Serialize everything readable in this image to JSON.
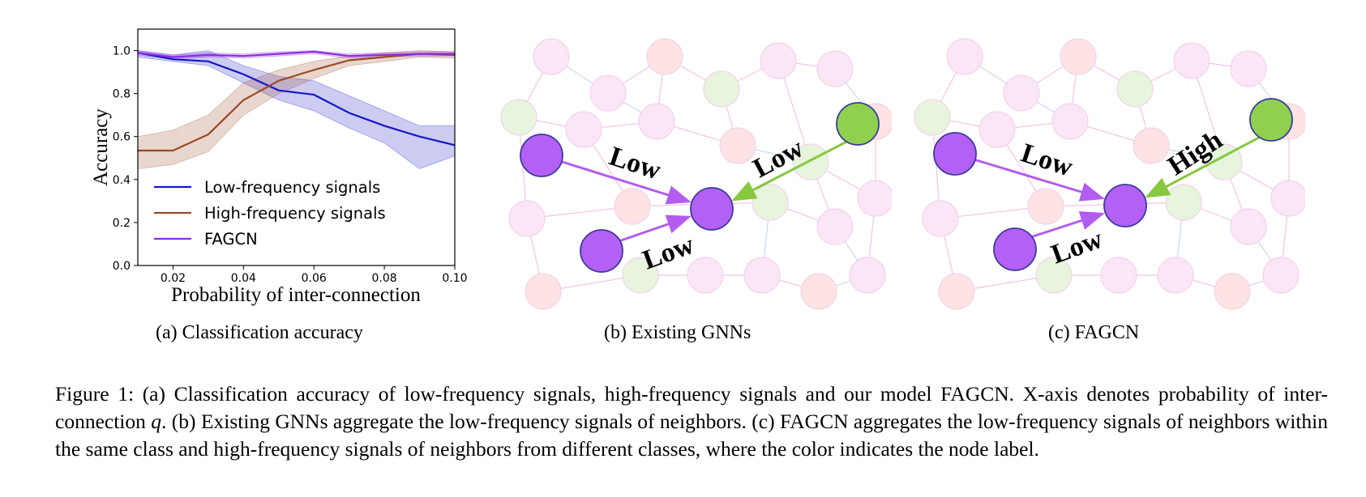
{
  "chart_data": {
    "type": "line",
    "xlabel": "Probability of inter-connection",
    "ylabel": "Accuracy",
    "xlim": [
      0.01,
      0.1
    ],
    "ylim": [
      0.0,
      1.1
    ],
    "xticks": [
      "0.02",
      "0.04",
      "0.06",
      "0.08",
      "0.10"
    ],
    "xtick_values": [
      0.02,
      0.04,
      0.06,
      0.08,
      0.1
    ],
    "yticks": [
      "0.0",
      "0.2",
      "0.4",
      "0.6",
      "0.8",
      "1.0"
    ],
    "ytick_values": [
      0.0,
      0.2,
      0.4,
      0.6,
      0.8,
      1.0
    ],
    "legend_position": "lower-left",
    "x": [
      0.01,
      0.02,
      0.03,
      0.04,
      0.05,
      0.06,
      0.07,
      0.08,
      0.09,
      0.1
    ],
    "series": [
      {
        "name": "Low-frequency signals",
        "color": "#1515c8",
        "values": [
          0.99,
          0.96,
          0.95,
          0.89,
          0.815,
          0.795,
          0.71,
          0.65,
          0.6,
          0.56
        ],
        "lower": [
          0.97,
          0.95,
          0.93,
          0.85,
          0.77,
          0.72,
          0.64,
          0.57,
          0.45,
          0.51
        ],
        "upper": [
          1.0,
          0.98,
          1.0,
          0.93,
          0.88,
          0.86,
          0.79,
          0.72,
          0.65,
          0.65
        ]
      },
      {
        "name": "High-frequency signals",
        "color": "#9b4a25",
        "values": [
          0.535,
          0.535,
          0.61,
          0.77,
          0.86,
          0.91,
          0.955,
          0.97,
          0.985,
          0.98
        ],
        "lower": [
          0.45,
          0.47,
          0.53,
          0.7,
          0.8,
          0.87,
          0.93,
          0.95,
          0.97,
          0.965
        ],
        "upper": [
          0.6,
          0.63,
          0.7,
          0.85,
          0.91,
          0.95,
          0.975,
          0.99,
          1.0,
          0.995
        ]
      },
      {
        "name": "FAGCN",
        "color": "#8b2be2",
        "values": [
          0.99,
          0.97,
          0.98,
          0.975,
          0.985,
          0.995,
          0.975,
          0.98,
          0.985,
          0.985
        ],
        "lower": [
          0.98,
          0.96,
          0.97,
          0.965,
          0.975,
          0.985,
          0.965,
          0.97,
          0.975,
          0.975
        ],
        "upper": [
          1.0,
          0.98,
          0.99,
          0.985,
          0.995,
          1.0,
          0.985,
          0.99,
          0.995,
          0.995
        ]
      }
    ]
  },
  "diagrams": {
    "existing_gnns": {
      "labels": {
        "left": "Low",
        "bottom": "Low",
        "right": "Low"
      },
      "node_colors": {
        "same_class": "#b560f5",
        "other_class": "#8fd14f"
      },
      "edge_colors": {
        "same_class": "#b35cf0",
        "other_class": "#86c83e"
      }
    },
    "fagcn": {
      "labels": {
        "left": "Low",
        "bottom": "Low",
        "right": "High"
      },
      "node_colors": {
        "same_class": "#b560f5",
        "other_class": "#8fd14f"
      },
      "edge_colors": {
        "same_class": "#b35cf0",
        "other_class": "#86c83e"
      }
    }
  },
  "subcaptions": {
    "a": "(a)  Classification accuracy",
    "b": "(b)  Existing GNNs",
    "c": "(c)  FAGCN"
  },
  "caption": {
    "part1": "Figure 1: (a) Classification accuracy of low-frequency signals, high-frequency signals and our model FAGCN. X-axis denotes probability of inter-connection ",
    "q": "q",
    "part2": ". (b) Existing GNNs aggregate the low-frequency signals of neighbors. (c) FAGCN aggregates the low-frequency signals of neighbors within the same class and high-frequency signals of neighbors from different classes, where the color indicates the node label."
  }
}
